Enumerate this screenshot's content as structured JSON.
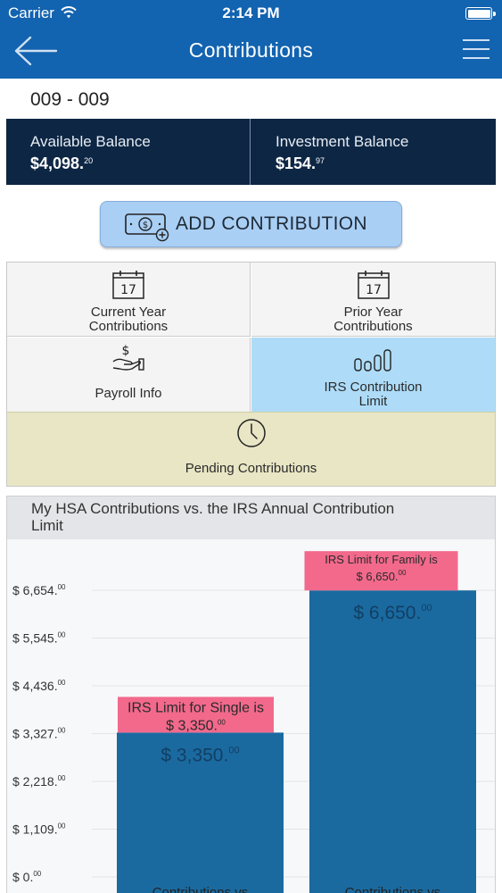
{
  "status_bar": {
    "carrier": "Carrier",
    "time": "2:14 PM"
  },
  "nav": {
    "title": "Contributions"
  },
  "account": {
    "number": "009 - 009"
  },
  "balances": [
    {
      "label": "Available Balance",
      "value_main": "$4,098.",
      "value_cents": "20"
    },
    {
      "label": "Investment Balance",
      "value_main": "$154.",
      "value_cents": "97"
    }
  ],
  "add_contribution": {
    "label": "ADD CONTRIBUTION"
  },
  "menu_tiles": {
    "current_year": {
      "line1": "Current Year",
      "line2": "Contributions",
      "calendar_day": "17"
    },
    "prior_year": {
      "line1": "Prior Year",
      "line2": "Contributions",
      "calendar_day": "17"
    },
    "payroll": {
      "label": "Payroll Info"
    },
    "irs_limit": {
      "line1": "IRS Contribution",
      "line2": "Limit"
    },
    "pending": {
      "label": "Pending Contributions"
    }
  },
  "colors": {
    "nav_blue": "#1263b0",
    "balance_navy": "#0d2644",
    "bar_blue": "#1a6aa0",
    "limit_pink": "#f2698c",
    "selected_tile": "#aedcf8",
    "pending_tile": "#e8e6c4"
  },
  "chart_data": {
    "type": "bar",
    "title": "My HSA Contributions vs. the IRS Annual Contribution Limit",
    "y_ticks": [
      {
        "main": "$ 0.",
        "cents": "00"
      },
      {
        "main": "$ 1,109.",
        "cents": "00"
      },
      {
        "main": "$ 2,218.",
        "cents": "00"
      },
      {
        "main": "$ 3,327.",
        "cents": "00"
      },
      {
        "main": "$ 4,436.",
        "cents": "00"
      },
      {
        "main": "$ 5,545.",
        "cents": "00"
      },
      {
        "main": "$ 6,654.",
        "cents": "00"
      }
    ],
    "ylim": [
      0,
      6654
    ],
    "bars": [
      {
        "category": "Contributions vs",
        "value": 3350,
        "value_main": "$ 3,350.",
        "value_cents": "00",
        "limit_line1": "IRS Limit for Single is",
        "limit_line2_main": "$ 3,350.",
        "limit_line2_cents": "00"
      },
      {
        "category": "Contributions vs",
        "value": 6650,
        "value_main": "$ 6,650.",
        "value_cents": "00",
        "limit_line1": "IRS Limit for Family is",
        "limit_line2_main": "$ 6,650.",
        "limit_line2_cents": "00"
      }
    ]
  }
}
